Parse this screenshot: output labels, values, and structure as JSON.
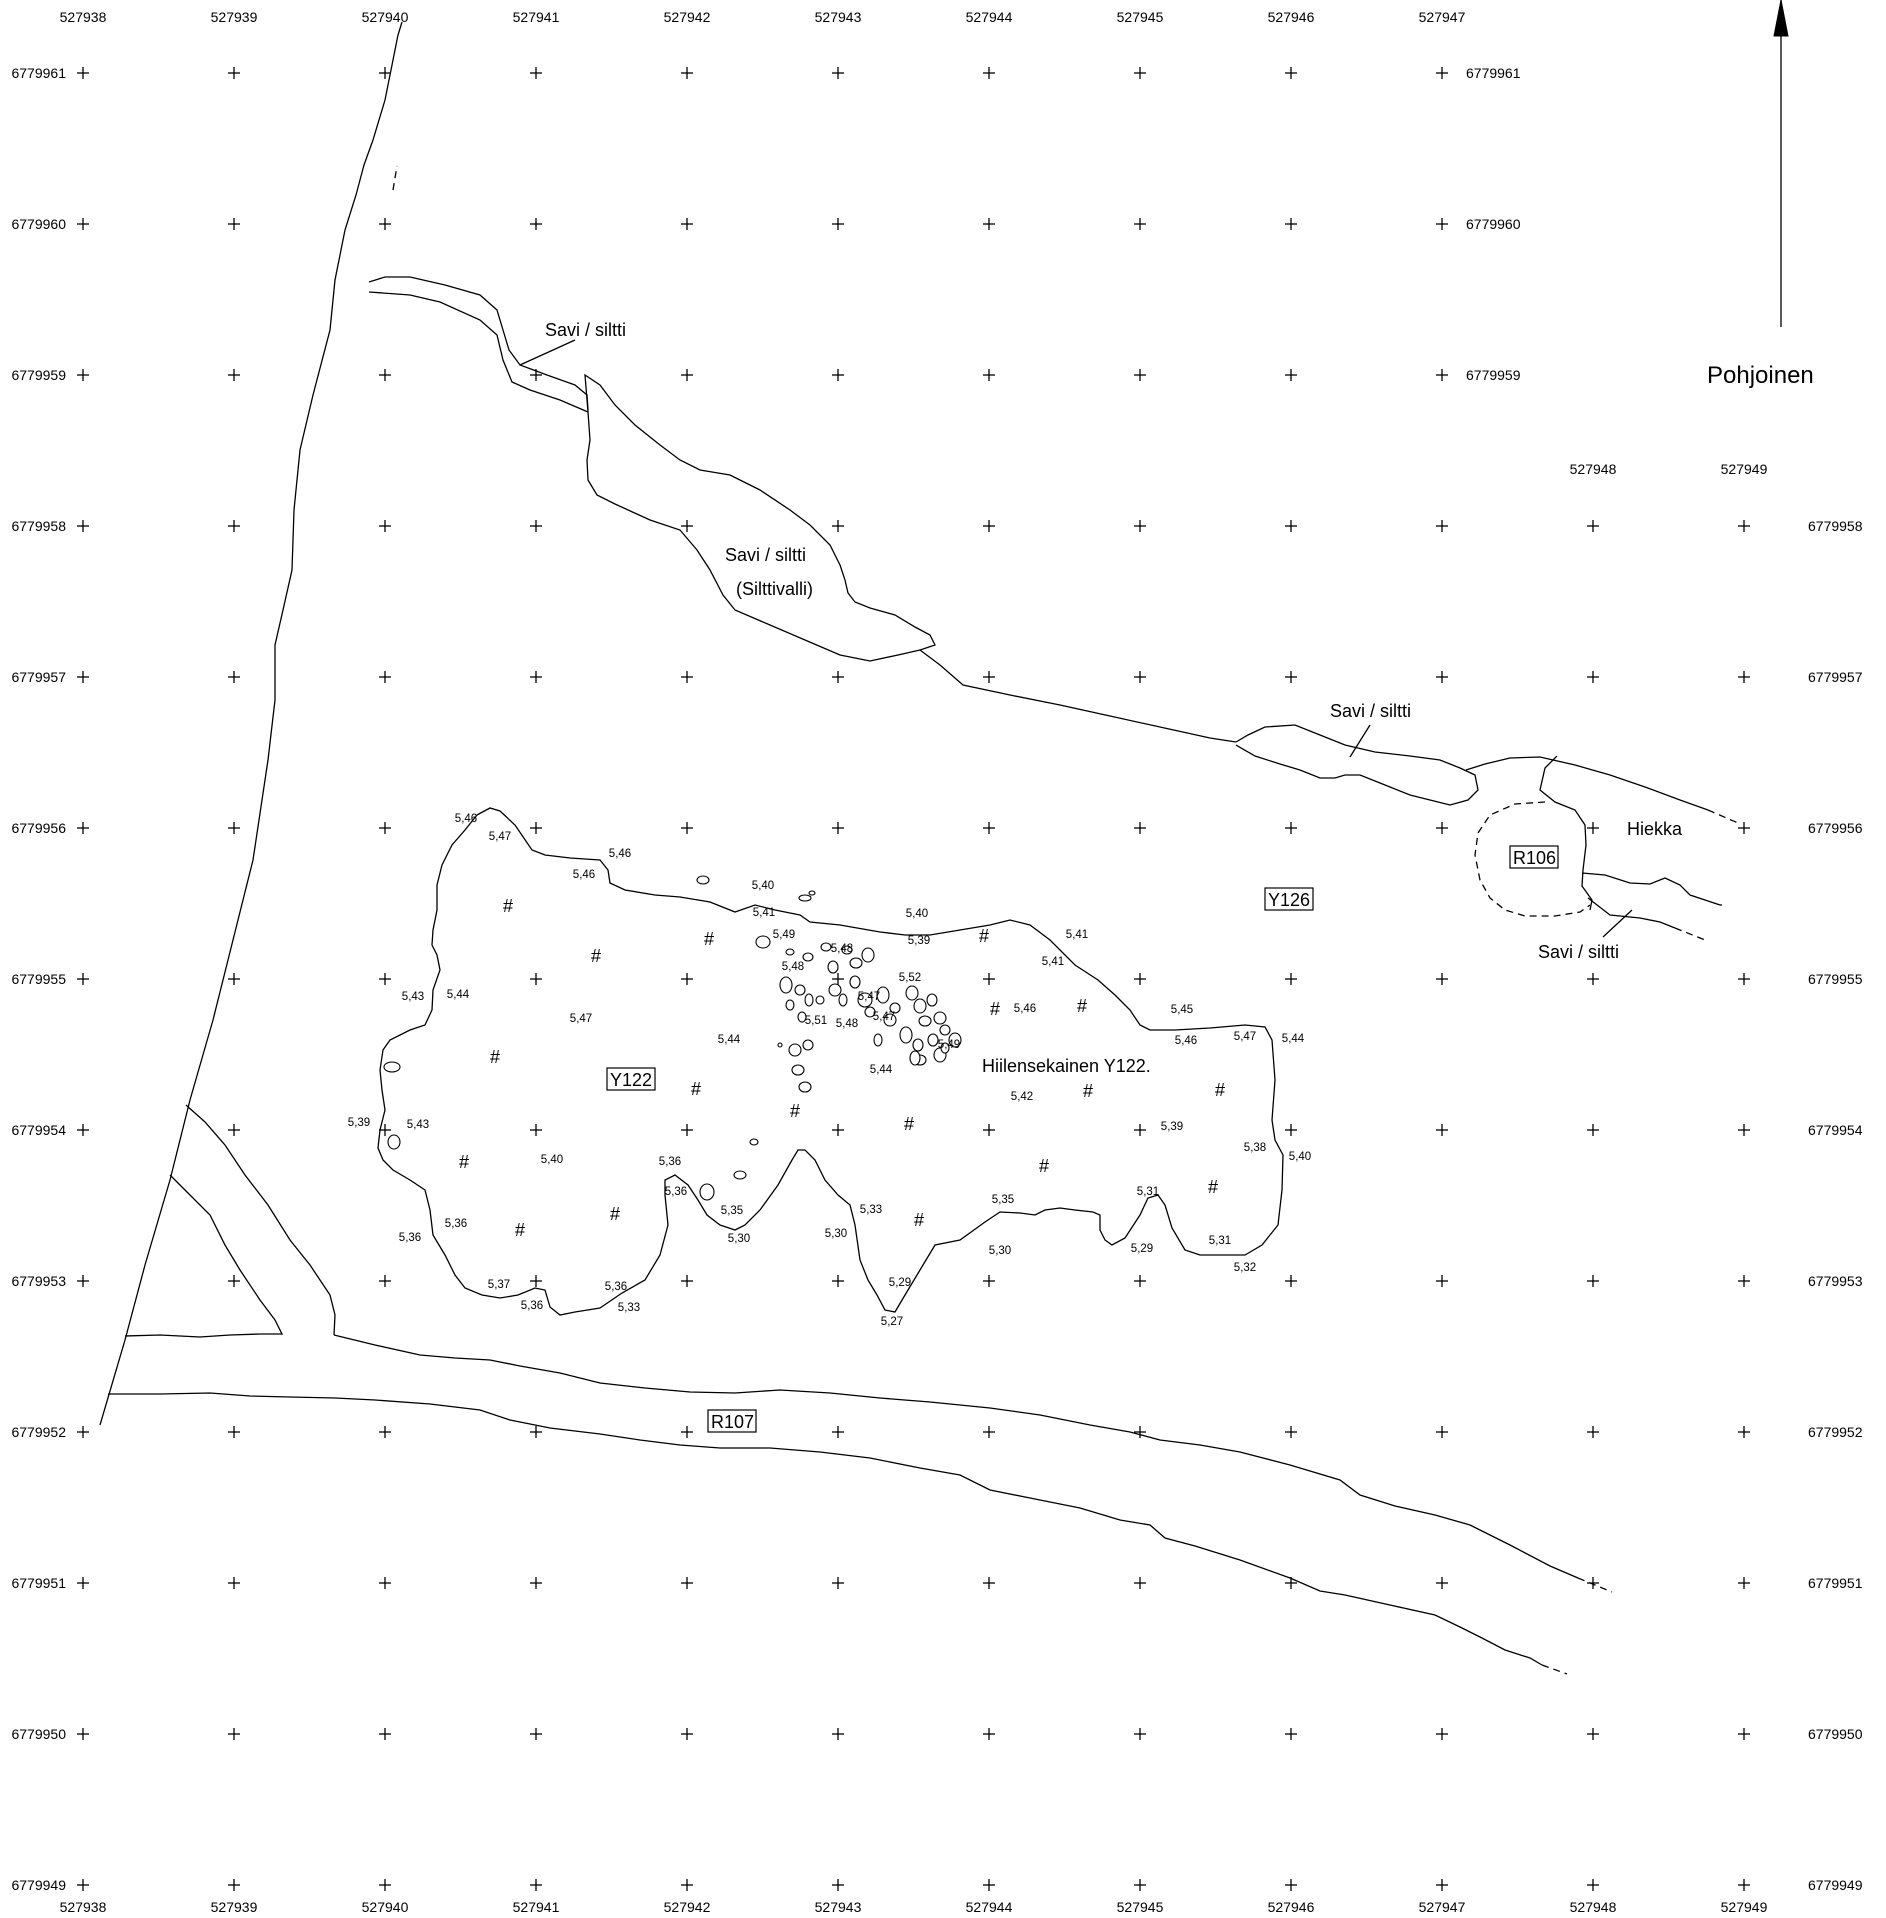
{
  "drawing": {
    "north_label": "Pohjoinen",
    "main_label": "Hiilensekainen Y122."
  },
  "x_axis": {
    "top": [
      "527938",
      "527939",
      "527940",
      "527941",
      "527942",
      "527943",
      "527944",
      "527945",
      "527946",
      "527947"
    ],
    "mid": [
      "527948",
      "527949"
    ],
    "bottom": [
      "527938",
      "527939",
      "527940",
      "527941",
      "527942",
      "527943",
      "527944",
      "527945",
      "527946",
      "527947",
      "527948",
      "527949"
    ]
  },
  "y_axis": {
    "left": [
      "6779961",
      "6779960",
      "6779959",
      "6779958",
      "6779957",
      "6779956",
      "6779955",
      "6779954",
      "6779953",
      "6779952",
      "6779951",
      "6779950",
      "6779949"
    ],
    "mid_right": [
      "6779961",
      "6779960",
      "6779959"
    ],
    "right": [
      "6779958",
      "6779957",
      "6779956",
      "6779955",
      "6779954",
      "6779953",
      "6779952",
      "6779951",
      "6779950",
      "6779949"
    ]
  },
  "labels": {
    "savi_1": "Savi / siltti",
    "savi_2": "Savi / siltti",
    "silttivalli": "(Silttivalli)",
    "savi_3": "Savi / siltti",
    "hiekka": "Hiekka",
    "savi_4": "Savi / siltti"
  },
  "boxed_labels": {
    "r106": "R106",
    "y126": "Y126",
    "y122": "Y122",
    "r107": "R107"
  },
  "hash_symbol": "#",
  "elevations": [
    "5,46",
    "5,47",
    "5,46",
    "5,46",
    "5,40",
    "5,41",
    "5,49",
    "5,48",
    "5,40",
    "5,39",
    "5,48",
    "5,41",
    "5,41",
    "5,52",
    "5,46",
    "5,47",
    "5,47",
    "5,51",
    "5,48",
    "5,49",
    "5,44",
    "5,44",
    "5,43",
    "5,44",
    "5,47",
    "5,45",
    "5,46",
    "5,47",
    "5,44",
    "5,42",
    "5,39",
    "5,43",
    "5,40",
    "5,36",
    "5,36",
    "5,39",
    "5,38",
    "5,40",
    "5,35",
    "5,31",
    "5,35",
    "5,33",
    "5,30",
    "5,30",
    "5,36",
    "5,36",
    "5,30",
    "5,29",
    "5,31",
    "5,37",
    "5,36",
    "5,33",
    "5,36",
    "5,29",
    "5,27",
    "5,32"
  ]
}
